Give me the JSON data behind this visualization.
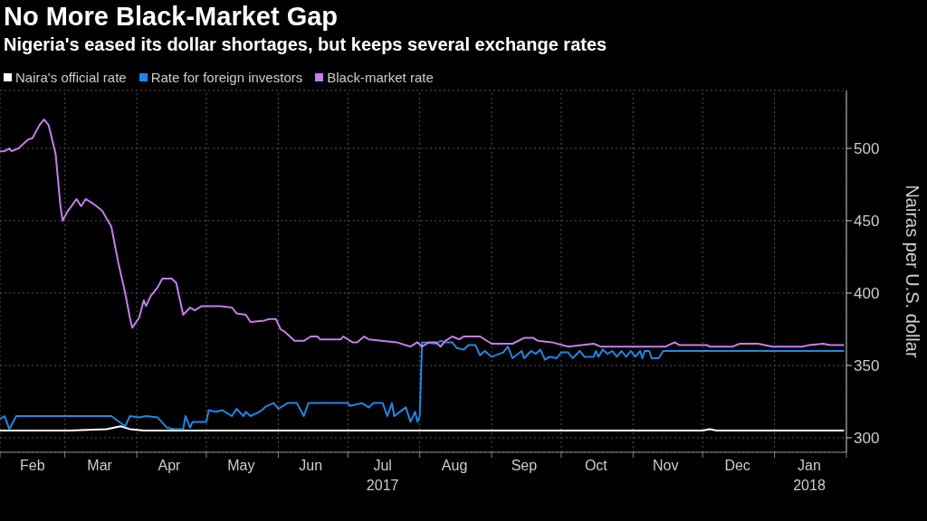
{
  "chart_data": {
    "type": "line",
    "title": "No More Black-Market Gap",
    "subtitle": "Nigeria's eased its dollar shortages, but keeps several exchange rates",
    "ylabel": "Nairas per U.S. dollar",
    "legend": "top left",
    "grid": true,
    "line_style": "solid",
    "marker": "none",
    "xlim": [
      "2017-02-01",
      "2018-02-01"
    ],
    "xticks": [
      {
        "value": "2017-02-01",
        "label": null
      },
      {
        "value": "2017-02-15",
        "label": "Feb"
      },
      {
        "value": "2017-03-01",
        "label": null
      },
      {
        "value": "2017-03-16",
        "label": "Mar"
      },
      {
        "value": "2017-04-01",
        "label": null
      },
      {
        "value": "2017-04-15",
        "label": "Apr"
      },
      {
        "value": "2017-05-01",
        "label": null
      },
      {
        "value": "2017-05-16",
        "label": "May"
      },
      {
        "value": "2017-06-01",
        "label": null
      },
      {
        "value": "2017-06-15",
        "label": "Jun"
      },
      {
        "value": "2017-07-01",
        "label": null
      },
      {
        "value": "2017-07-16",
        "label": "Jul\n2017"
      },
      {
        "value": "2017-08-01",
        "label": null
      },
      {
        "value": "2017-08-16",
        "label": "Aug"
      },
      {
        "value": "2017-09-01",
        "label": null
      },
      {
        "value": "2017-09-15",
        "label": "Sep"
      },
      {
        "value": "2017-10-01",
        "label": null
      },
      {
        "value": "2017-10-16",
        "label": "Oct"
      },
      {
        "value": "2017-11-01",
        "label": null
      },
      {
        "value": "2017-11-15",
        "label": "Nov"
      },
      {
        "value": "2017-12-01",
        "label": null
      },
      {
        "value": "2017-12-16",
        "label": "Dec"
      },
      {
        "value": "2018-01-01",
        "label": null
      },
      {
        "value": "2018-01-16",
        "label": "Jan\n2018"
      },
      {
        "value": "2018-02-01",
        "label": null
      }
    ],
    "ylim": [
      290,
      540
    ],
    "yticks": [
      300,
      350,
      400,
      450,
      500
    ],
    "series": [
      {
        "name": "Naira's official rate",
        "color": "#ffffff",
        "x": [
          "2017-02-01",
          "2017-03-03",
          "2017-03-19",
          "2017-03-25",
          "2017-03-29",
          "2017-04-04",
          "2017-12-01",
          "2017-12-04",
          "2017-12-07",
          "2018-01-31"
        ],
        "values": [
          305,
          305,
          306,
          308,
          306,
          305,
          305,
          306,
          305,
          305
        ]
      },
      {
        "name": "Rate for foreign investors",
        "color": "#1e88e5",
        "x": [
          "2017-02-01",
          "2017-02-03",
          "2017-02-05",
          "2017-02-08",
          "2017-03-21",
          "2017-03-27",
          "2017-03-29",
          "2017-04-02",
          "2017-04-05",
          "2017-04-10",
          "2017-04-14",
          "2017-04-17",
          "2017-04-21",
          "2017-04-22",
          "2017-04-24",
          "2017-04-25",
          "2017-05-01",
          "2017-05-02",
          "2017-05-05",
          "2017-05-08",
          "2017-05-12",
          "2017-05-14",
          "2017-05-17",
          "2017-05-18",
          "2017-05-20",
          "2017-05-24",
          "2017-05-27",
          "2017-05-30",
          "2017-06-01",
          "2017-06-05",
          "2017-06-09",
          "2017-06-12",
          "2017-06-14",
          "2017-07-01",
          "2017-07-02",
          "2017-07-07",
          "2017-07-10",
          "2017-07-12",
          "2017-07-16",
          "2017-07-18",
          "2017-07-20",
          "2017-07-21",
          "2017-07-26",
          "2017-07-28",
          "2017-07-30",
          "2017-07-31",
          "2017-08-01",
          "2017-08-02",
          "2017-08-03",
          "2017-08-08",
          "2017-08-10",
          "2017-08-12",
          "2017-08-15",
          "2017-08-17",
          "2017-08-20",
          "2017-08-22",
          "2017-08-25",
          "2017-08-27",
          "2017-08-29",
          "2017-09-01",
          "2017-09-06",
          "2017-09-08",
          "2017-09-10",
          "2017-09-14",
          "2017-09-15",
          "2017-09-18",
          "2017-09-20",
          "2017-09-22",
          "2017-09-24",
          "2017-09-26",
          "2017-09-29",
          "2017-10-01",
          "2017-10-04",
          "2017-10-06",
          "2017-10-09",
          "2017-10-11",
          "2017-10-15",
          "2017-10-16",
          "2017-10-17",
          "2017-10-19",
          "2017-10-21",
          "2017-10-23",
          "2017-10-25",
          "2017-10-27",
          "2017-10-29",
          "2017-10-31",
          "2017-11-02",
          "2017-11-04",
          "2017-11-05",
          "2017-11-06",
          "2017-11-08",
          "2017-11-09",
          "2017-11-12",
          "2017-11-14",
          "2018-01-31"
        ],
        "values": [
          313,
          315,
          306,
          315,
          315,
          308,
          315,
          314,
          315,
          314,
          307,
          306,
          306,
          315,
          307,
          311,
          311,
          319,
          318,
          319,
          315,
          320,
          315,
          318,
          315,
          318,
          322,
          324,
          320,
          324,
          324,
          315,
          324,
          324,
          322,
          324,
          321,
          324,
          324,
          315,
          324,
          315,
          321,
          311,
          318,
          311,
          315,
          366,
          366,
          365,
          367,
          366,
          366,
          362,
          361,
          364,
          364,
          357,
          360,
          356,
          359,
          363,
          355,
          360,
          355,
          360,
          358,
          361,
          354,
          356,
          355,
          359,
          359,
          355,
          360,
          356,
          356,
          360,
          356,
          361,
          358,
          360,
          356,
          360,
          356,
          360,
          356,
          360,
          355,
          360,
          360,
          355,
          355,
          360,
          360
        ]
      },
      {
        "name": "Black-market rate",
        "color": "#c77dea",
        "x": [
          "2017-02-01",
          "2017-02-03",
          "2017-02-05",
          "2017-02-06",
          "2017-02-09",
          "2017-02-13",
          "2017-02-15",
          "2017-02-18",
          "2017-02-20",
          "2017-02-22",
          "2017-02-25",
          "2017-02-27",
          "2017-02-28",
          "2017-03-02",
          "2017-03-06",
          "2017-03-08",
          "2017-03-10",
          "2017-03-13",
          "2017-03-17",
          "2017-03-21",
          "2017-03-24",
          "2017-03-27",
          "2017-03-29",
          "2017-03-30",
          "2017-04-02",
          "2017-04-04",
          "2017-04-05",
          "2017-04-07",
          "2017-04-10",
          "2017-04-12",
          "2017-04-16",
          "2017-04-18",
          "2017-04-21",
          "2017-04-24",
          "2017-04-26",
          "2017-04-29",
          "2017-05-07",
          "2017-05-12",
          "2017-05-14",
          "2017-05-18",
          "2017-05-20",
          "2017-05-26",
          "2017-05-28",
          "2017-05-31",
          "2017-06-02",
          "2017-06-04",
          "2017-06-08",
          "2017-06-12",
          "2017-06-15",
          "2017-06-18",
          "2017-06-19",
          "2017-06-28",
          "2017-06-29",
          "2017-07-03",
          "2017-07-05",
          "2017-07-08",
          "2017-07-10",
          "2017-07-22",
          "2017-07-28",
          "2017-07-31",
          "2017-08-02",
          "2017-08-05",
          "2017-08-08",
          "2017-08-10",
          "2017-08-12",
          "2017-08-15",
          "2017-08-18",
          "2017-08-20",
          "2017-08-27",
          "2017-09-01",
          "2017-09-10",
          "2017-09-15",
          "2017-09-19",
          "2017-09-21",
          "2017-09-27",
          "2017-10-04",
          "2017-10-15",
          "2017-10-18",
          "2017-11-15",
          "2017-11-19",
          "2017-11-21",
          "2017-12-03",
          "2017-12-04",
          "2017-12-14",
          "2017-12-17",
          "2017-12-25",
          "2017-12-31",
          "2018-01-13",
          "2018-01-16",
          "2018-01-22",
          "2018-01-25",
          "2018-01-31"
        ],
        "values": [
          498,
          498,
          500,
          498,
          500,
          506,
          507,
          516,
          520,
          516,
          496,
          461,
          450,
          456,
          465,
          460,
          465,
          462,
          457,
          446,
          421,
          400,
          383,
          376,
          383,
          395,
          391,
          398,
          404,
          410,
          410,
          407,
          385,
          390,
          388,
          391,
          391,
          390,
          386,
          385,
          380,
          381,
          382,
          382,
          375,
          373,
          367,
          367,
          370,
          370,
          368,
          368,
          370,
          366,
          366,
          370,
          368,
          366,
          363,
          366,
          363,
          366,
          366,
          363,
          367,
          370,
          368,
          370,
          370,
          365,
          365,
          369,
          369,
          367,
          366,
          363,
          365,
          363,
          363,
          366,
          364,
          364,
          363,
          363,
          365,
          365,
          363,
          363,
          364,
          365,
          364,
          364
        ]
      }
    ]
  }
}
